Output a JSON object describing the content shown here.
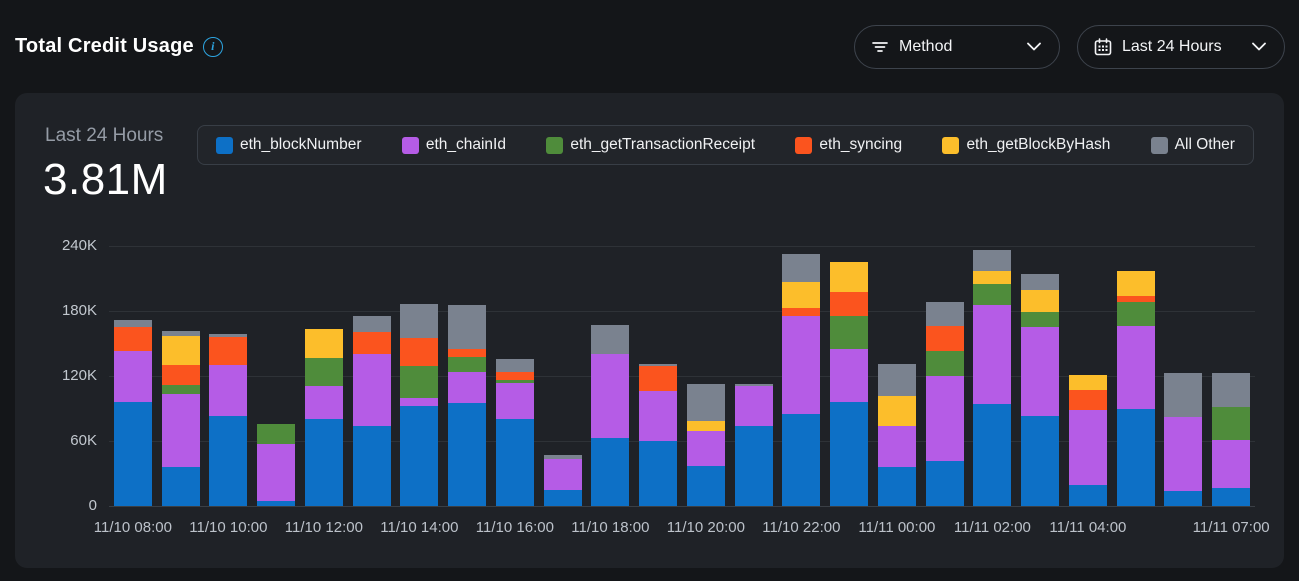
{
  "header": {
    "title": "Total Credit Usage",
    "controls": {
      "method_dropdown": {
        "label": "Method"
      },
      "time_dropdown": {
        "label": "Last 24 Hours"
      }
    }
  },
  "summary": {
    "period_label": "Last 24 Hours",
    "total_value": "3.81M"
  },
  "colors": {
    "page_bg": "#141619",
    "card_bg": "#1f2227",
    "accent_info": "#2da4e0",
    "axis_text": "#c2c8cf",
    "gridline": "#2e3237"
  },
  "chart_data": {
    "type": "bar",
    "stacked": true,
    "title": "Total Credit Usage - Last 24 Hours",
    "unit": "credits",
    "values_scale": "thousands",
    "ylim": [
      0,
      240
    ],
    "y_ticks": [
      0,
      60,
      120,
      180,
      240
    ],
    "y_tick_labels": [
      "0",
      "60K",
      "120K",
      "180K",
      "240K"
    ],
    "grid": true,
    "legend_position": "top",
    "x": [
      "11/10 08:00",
      "11/10 09:00",
      "11/10 10:00",
      "11/10 11:00",
      "11/10 12:00",
      "11/10 13:00",
      "11/10 14:00",
      "11/10 15:00",
      "11/10 16:00",
      "11/10 17:00",
      "11/10 18:00",
      "11/10 19:00",
      "11/10 20:00",
      "11/10 21:00",
      "11/10 22:00",
      "11/10 23:00",
      "11/11 00:00",
      "11/11 01:00",
      "11/11 02:00",
      "11/11 03:00",
      "11/11 04:00",
      "11/11 05:00",
      "11/11 06:00",
      "11/11 07:00"
    ],
    "x_tick_indices": [
      0,
      2,
      4,
      6,
      8,
      10,
      12,
      14,
      16,
      18,
      20,
      23
    ],
    "x_tick_labels": [
      "11/10 08:00",
      "11/10 10:00",
      "11/10 12:00",
      "11/10 14:00",
      "11/10 16:00",
      "11/10 18:00",
      "11/10 20:00",
      "11/10 22:00",
      "11/11 00:00",
      "11/11 02:00",
      "11/11 04:00",
      "11/11 07:00"
    ],
    "series": [
      {
        "name": "eth_blockNumber",
        "color": "#0d70c6",
        "values_k": [
          96,
          36,
          83,
          5,
          80,
          74,
          92,
          95,
          80,
          15,
          63,
          60,
          37,
          74,
          85,
          96,
          36,
          42,
          94,
          83,
          19,
          90,
          14,
          17
        ]
      },
      {
        "name": "eth_chainId",
        "color": "#b55ce6",
        "values_k": [
          47,
          67,
          47,
          52,
          31,
          66,
          8,
          29,
          34,
          28,
          77,
          46,
          32,
          37,
          90,
          49,
          38,
          78,
          92,
          82,
          70,
          76,
          68,
          44
        ]
      },
      {
        "name": "eth_getTransactionReceipt",
        "color": "#4f8c3b",
        "values_k": [
          0,
          9,
          0,
          19,
          26,
          0,
          29,
          14,
          2,
          0,
          0,
          0,
          0,
          0,
          0,
          30,
          0,
          23,
          19,
          14,
          0,
          22,
          0,
          30
        ]
      },
      {
        "name": "eth_syncing",
        "color": "#fb541e",
        "values_k": [
          22,
          18,
          26,
          0,
          0,
          21,
          26,
          7,
          8,
          0,
          0,
          23,
          0,
          0,
          8,
          23,
          0,
          23,
          0,
          0,
          18,
          6,
          0,
          0
        ]
      },
      {
        "name": "eth_getBlockByHash",
        "color": "#fcbe2b",
        "values_k": [
          0,
          27,
          0,
          0,
          26,
          0,
          0,
          0,
          0,
          0,
          0,
          0,
          9,
          0,
          24,
          27,
          28,
          0,
          12,
          20,
          14,
          23,
          0,
          0
        ]
      },
      {
        "name": "All Other",
        "color": "#7a828f",
        "values_k": [
          7,
          5,
          3,
          0,
          0,
          14,
          31,
          41,
          12,
          4,
          27,
          2,
          35,
          2,
          26,
          0,
          29,
          22,
          19,
          15,
          0,
          0,
          41,
          32
        ]
      }
    ]
  }
}
